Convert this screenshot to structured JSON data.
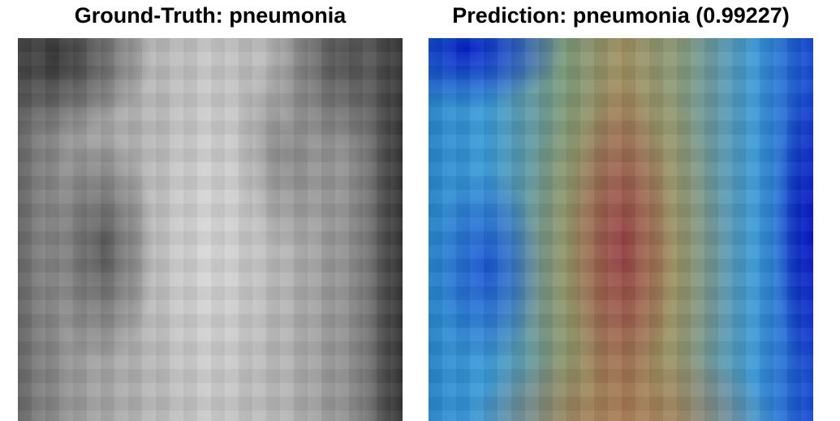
{
  "left": {
    "title": "Ground-Truth: pneumonia"
  },
  "right": {
    "title": "Prediction: pneumonia (0.99227)"
  }
}
